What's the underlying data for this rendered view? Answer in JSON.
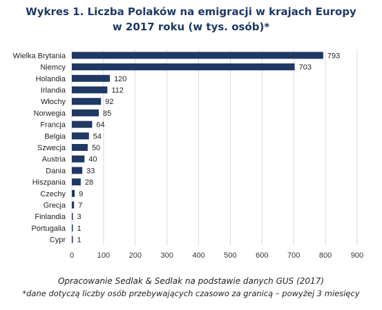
{
  "title_line1": "Wykres 1. Liczba Polaków na emigracji w krajach Europy",
  "title_line2": "w 2017 roku (w tys. osób)*",
  "footnote_source": "Opracowanie Sedlak & Sedlak na podstawie danych GUS (2017)",
  "footnote_note": "*dane dotyczą liczby osób przebywających czasowo za granicą – powyżej 3 miesięcy",
  "colors": {
    "bar": "#1f3864",
    "grid": "#d9d9d9"
  },
  "chart_data": {
    "type": "bar",
    "orientation": "horizontal",
    "title": "Wykres 1. Liczba Polaków na emigracji w krajach Europy w 2017 roku (w tys. osób)*",
    "categories": [
      "Wielka Brytania",
      "Niemcy",
      "Holandia",
      "Irlandia",
      "Włochy",
      "Norwegia",
      "Francja",
      "Belgia",
      "Szwecja",
      "Austria",
      "Dania",
      "Hiszpania",
      "Czechy",
      "Grecja",
      "Finlandia",
      "Portugalia",
      "Cypr"
    ],
    "values": [
      793,
      703,
      120,
      112,
      92,
      85,
      64,
      54,
      50,
      40,
      33,
      28,
      9,
      7,
      3,
      1,
      1
    ],
    "xlabel": "",
    "ylabel": "",
    "xlim": [
      0,
      900
    ],
    "xticks": [
      0,
      100,
      200,
      300,
      400,
      500,
      600,
      700,
      800,
      900
    ],
    "grid": true,
    "data_labels": true
  }
}
